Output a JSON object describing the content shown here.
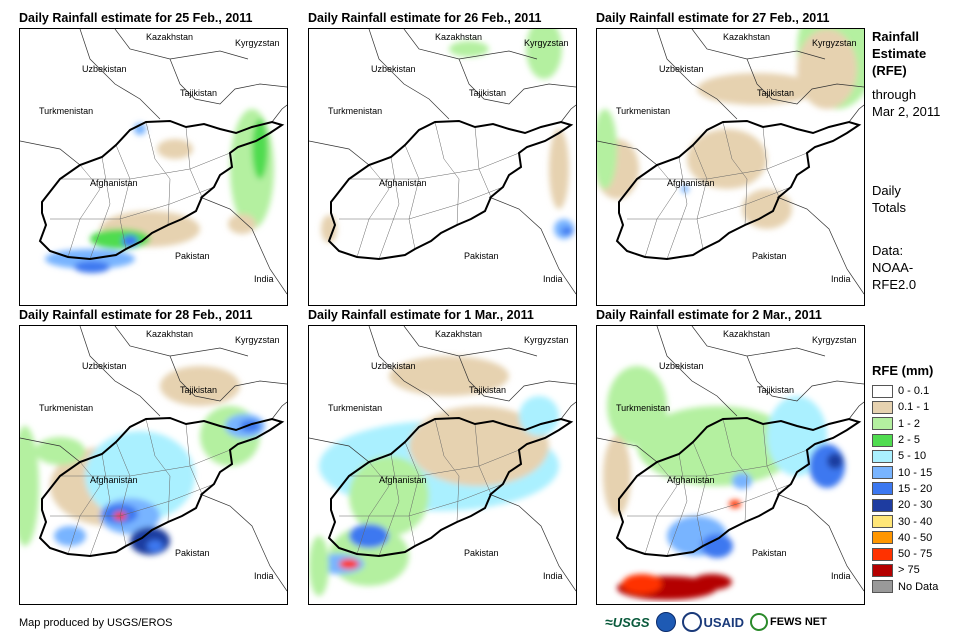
{
  "panels": [
    {
      "title": "Daily Rainfall estimate for 25 Feb., 2011"
    },
    {
      "title": "Daily Rainfall estimate for 26 Feb., 2011"
    },
    {
      "title": "Daily Rainfall estimate for 27 Feb., 2011"
    },
    {
      "title": "Daily Rainfall estimate for 28 Feb., 2011"
    },
    {
      "title": "Daily Rainfall estimate for 1 Mar., 2011"
    },
    {
      "title": "Daily Rainfall estimate for 2 Mar., 2011"
    }
  ],
  "map_labels": {
    "kazakhstan": "Kazakhstan",
    "kyrgyzstan": "Kyrgyzstan",
    "uzbekistan": "Uzbekistan",
    "tajikistan": "Tajikistan",
    "turkmenistan": "Turkmenistan",
    "afghanistan": "Afghanistan",
    "pakistan": "Pakistan",
    "india": "India"
  },
  "side_text": {
    "title_line1": "Rainfall",
    "title_line2": "Estimate",
    "title_line3": "(RFE)",
    "through": "through",
    "date": "Mar 2, 2011",
    "daily1": "Daily",
    "daily2": "Totals",
    "data1": "Data:",
    "data2": "NOAA-",
    "data3": "RFE2.0"
  },
  "legend": {
    "title": "RFE (mm)",
    "items": [
      {
        "label": "0 - 0.1",
        "color": "#ffffff"
      },
      {
        "label": "0.1 - 1",
        "color": "#e6d2b0"
      },
      {
        "label": "1 - 2",
        "color": "#b4f0a0"
      },
      {
        "label": "2 - 5",
        "color": "#50dc50"
      },
      {
        "label": "5 - 10",
        "color": "#aaf0ff"
      },
      {
        "label": "10 - 15",
        "color": "#78b4ff"
      },
      {
        "label": "15 - 20",
        "color": "#3c78f0"
      },
      {
        "label": "20 - 30",
        "color": "#1e3ca0"
      },
      {
        "label": "30 - 40",
        "color": "#ffe678"
      },
      {
        "label": "40 - 50",
        "color": "#ff9600"
      },
      {
        "label": "50 - 75",
        "color": "#ff3200"
      },
      {
        "label": "> 75",
        "color": "#b40000"
      },
      {
        "label": "No Data",
        "color": "#999999"
      }
    ]
  },
  "footer": {
    "credit": "Map produced by USGS/EROS",
    "logo_usgs": "USGS",
    "logo_usaid": "USAID",
    "logo_fews": "FEWS NET"
  }
}
